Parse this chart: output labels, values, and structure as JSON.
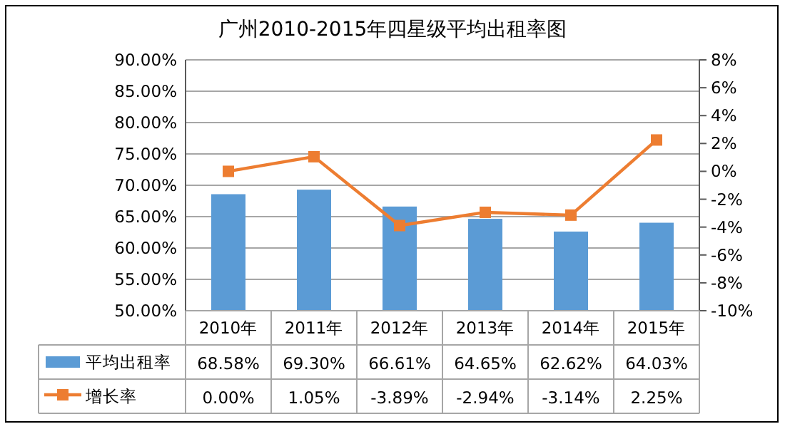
{
  "chart_data": {
    "type": "bar",
    "title": "广州2010-2015年四星级平均出租率图",
    "categories": [
      "2010年",
      "2011年",
      "2012年",
      "2013年",
      "2014年",
      "2015年"
    ],
    "series": [
      {
        "name": "平均出租率",
        "color": "#5b9bd5",
        "values": [
          68.58,
          69.3,
          66.61,
          64.65,
          62.62,
          64.03
        ],
        "value_labels": [
          "68.58%",
          "69.30%",
          "66.61%",
          "64.65%",
          "62.62%",
          "64.03%"
        ]
      },
      {
        "name": "增长率",
        "type": "line",
        "axis": "y2",
        "color": "#ed7d31",
        "marker": "square",
        "values": [
          0.0,
          1.05,
          -3.89,
          -2.94,
          -3.14,
          2.25
        ],
        "value_labels": [
          "0.00%",
          "1.05%",
          "-3.89%",
          "-2.94%",
          "-3.14%",
          "2.25%"
        ]
      }
    ],
    "ylim": [
      50,
      90
    ],
    "yticks": [
      {
        "value": 50,
        "label": "50.00%"
      },
      {
        "value": 55,
        "label": "55.00%"
      },
      {
        "value": 60,
        "label": "60.00%"
      },
      {
        "value": 65,
        "label": "65.00%"
      },
      {
        "value": 70,
        "label": "70.00%"
      },
      {
        "value": 75,
        "label": "75.00%"
      },
      {
        "value": 80,
        "label": "80.00%"
      },
      {
        "value": 85,
        "label": "85.00%"
      },
      {
        "value": 90,
        "label": "90.00%"
      }
    ],
    "y2lim": [
      -10,
      8
    ],
    "y2ticks": [
      {
        "value": -10,
        "label": "-10%"
      },
      {
        "value": -8,
        "label": "-8%"
      },
      {
        "value": -6,
        "label": "-6%"
      },
      {
        "value": -4,
        "label": "-4%"
      },
      {
        "value": -2,
        "label": "-2%"
      },
      {
        "value": 0,
        "label": "0%"
      },
      {
        "value": 2,
        "label": "2%"
      },
      {
        "value": 4,
        "label": "4%"
      },
      {
        "value": 6,
        "label": "6%"
      },
      {
        "value": 8,
        "label": "8%"
      }
    ],
    "grid": "y",
    "legend": "bottom"
  }
}
